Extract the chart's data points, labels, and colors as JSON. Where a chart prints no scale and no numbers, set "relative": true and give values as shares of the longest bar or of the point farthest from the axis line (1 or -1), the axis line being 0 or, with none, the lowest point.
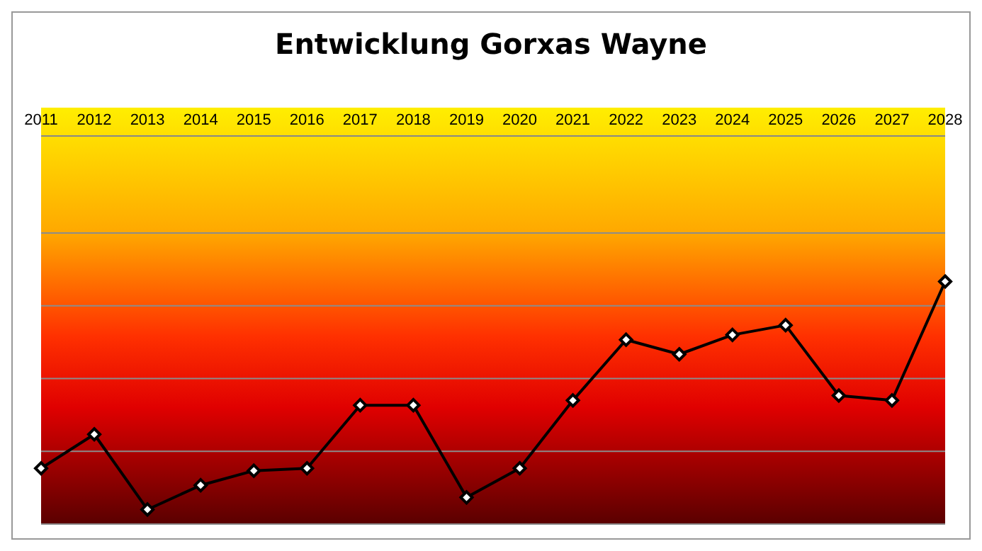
{
  "chart_data": {
    "type": "line",
    "title": "Entwicklung Gorxas Wayne",
    "relative": true,
    "categories": [
      "2011",
      "2012",
      "2013",
      "2014",
      "2015",
      "2016",
      "2017",
      "2018",
      "2019",
      "2020",
      "2021",
      "2022",
      "2023",
      "2024",
      "2025",
      "2026",
      "2027",
      "2028"
    ],
    "series": [
      {
        "color": "#000000",
        "values": [
          0.23,
          0.37,
          0.06,
          0.16,
          0.22,
          0.23,
          0.49,
          0.49,
          0.11,
          0.23,
          0.51,
          0.76,
          0.7,
          0.78,
          0.82,
          0.53,
          0.51,
          1
        ]
      }
    ],
    "marker": "diamond",
    "line_style": "solid",
    "grid": "y",
    "legend": false
  }
}
